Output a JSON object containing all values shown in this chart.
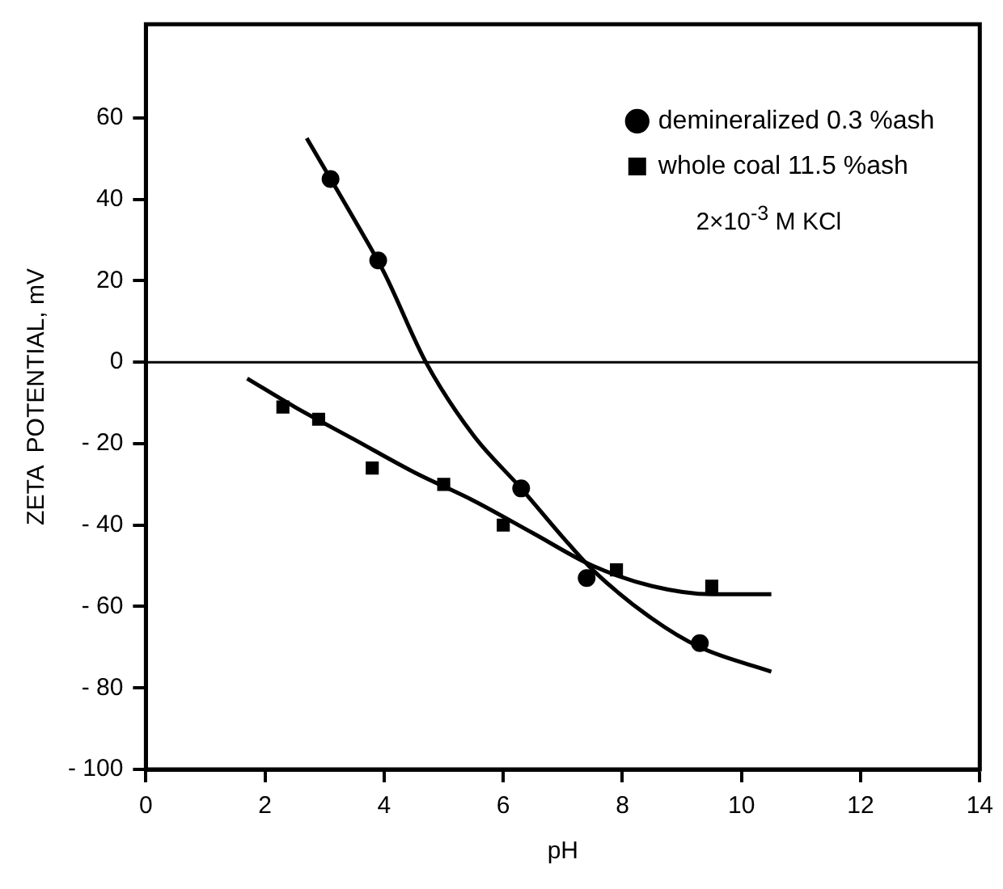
{
  "chart_data": {
    "type": "scatter",
    "xlabel": "pH",
    "ylabel": "ZETA  POTENTIAL, mV",
    "xlim": [
      0,
      14
    ],
    "ylim": [
      -100,
      83
    ],
    "xticks": [
      0,
      2,
      4,
      6,
      8,
      10,
      12,
      14
    ],
    "yticks": [
      -100,
      -80,
      -60,
      -40,
      -20,
      0,
      20,
      40,
      60
    ],
    "grid": false,
    "legend": "top right",
    "annotations": [
      "2×10$^{-3}$ M KCl"
    ],
    "ref_lines": [
      {
        "axis": "y",
        "value": 0,
        "color": "#000000"
      }
    ],
    "series": [
      {
        "name": "demineralized 0.3 %ash",
        "marker": "circle",
        "color": "#000000",
        "x": [
          3.1,
          3.9,
          6.3,
          7.4,
          9.3
        ],
        "values": [
          45,
          25,
          -31,
          -53,
          -69
        ]
      },
      {
        "name": "whole coal 11.5 %ash",
        "marker": "square",
        "color": "#000000",
        "x": [
          2.3,
          2.9,
          3.8,
          5.0,
          6.0,
          7.9,
          9.5
        ],
        "values": [
          -11,
          -14,
          -26,
          -30,
          -40,
          -51,
          -55
        ]
      },
      {
        "type": "line",
        "marker": "none",
        "color": "#000000",
        "x": [
          2.7,
          3.5,
          4.0,
          4.7,
          5.5,
          6.3,
          7.0,
          7.5,
          8.5,
          9.3,
          10.5
        ],
        "values": [
          55,
          35,
          22,
          0,
          -18,
          -31,
          -43,
          -51,
          -63,
          -70,
          -76
        ]
      },
      {
        "type": "line",
        "marker": "none",
        "color": "#000000",
        "x": [
          1.7,
          2.5,
          3.5,
          4.5,
          5.5,
          6.5,
          7.5,
          8.5,
          9.5,
          10.5
        ],
        "values": [
          -4,
          -11,
          -19,
          -27,
          -34,
          -42,
          -50,
          -55,
          -57,
          -57
        ]
      }
    ]
  }
}
